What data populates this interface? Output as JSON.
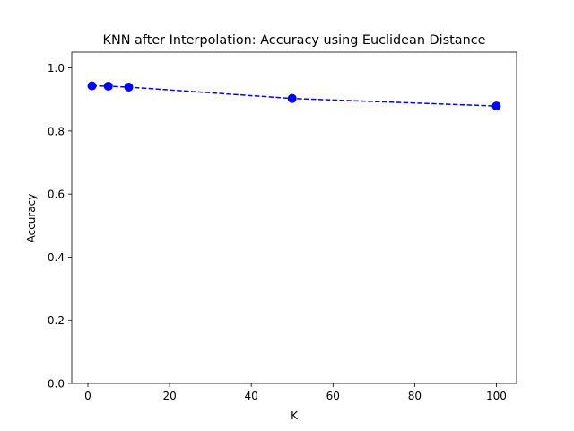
{
  "chart_data": {
    "type": "line",
    "title": "KNN after Interpolation: Accuracy using Euclidean Distance",
    "xlabel": "K",
    "ylabel": "Accuracy",
    "x": [
      1,
      5,
      10,
      50,
      100
    ],
    "series": [
      {
        "values": [
          0.943,
          0.942,
          0.939,
          0.903,
          0.879
        ],
        "color": "#0000ff",
        "line_style": "dashed",
        "marker": "circle"
      }
    ],
    "xlim": [
      -3.95,
      104.95
    ],
    "ylim": [
      0.0,
      1.05
    ],
    "xticks": [
      0,
      20,
      40,
      60,
      80,
      100
    ],
    "yticks": [
      0.0,
      0.2,
      0.4,
      0.6,
      0.8,
      1.0
    ],
    "xtick_labels": [
      "0",
      "20",
      "40",
      "60",
      "80",
      "100"
    ],
    "ytick_labels": [
      "0.0",
      "0.2",
      "0.4",
      "0.6",
      "0.8",
      "1.0"
    ],
    "grid": false,
    "legend": "none"
  }
}
